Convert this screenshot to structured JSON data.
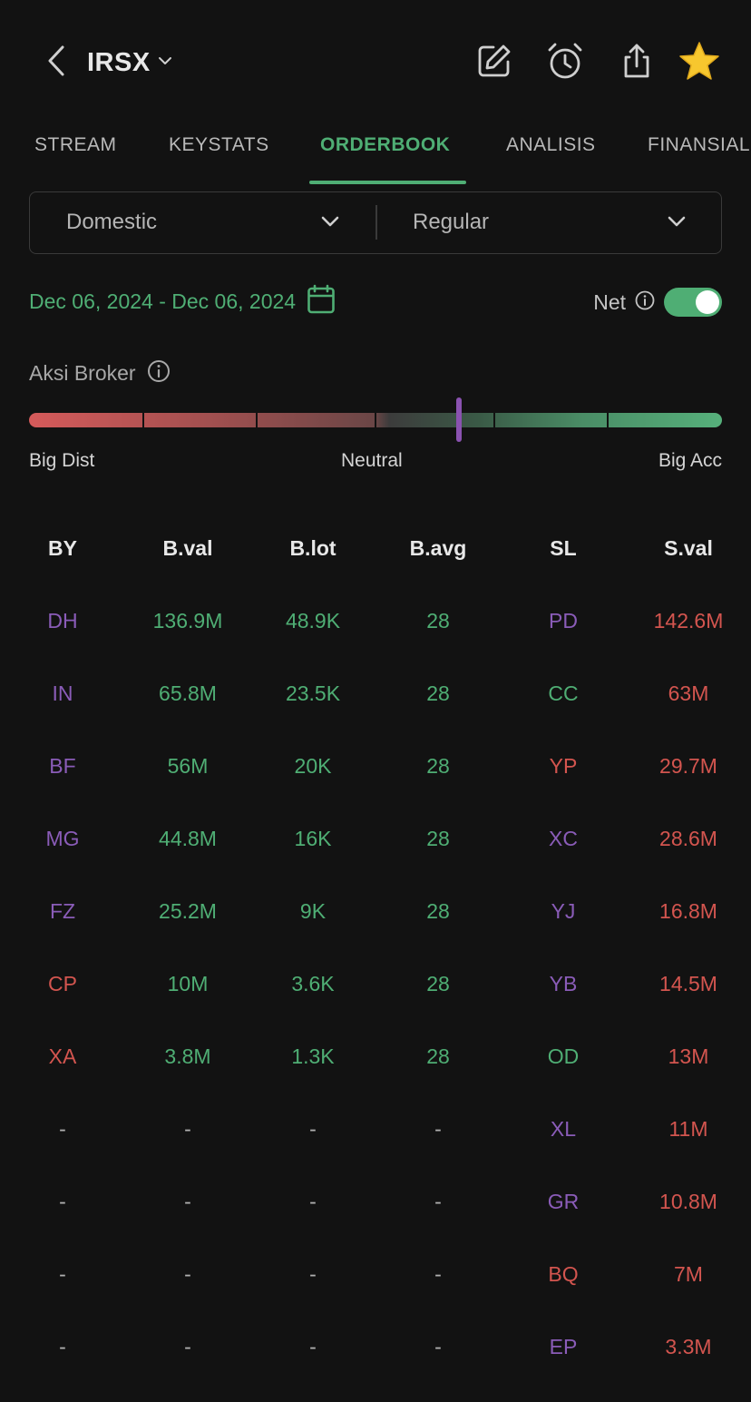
{
  "header": {
    "ticker": "IRSX",
    "icons": {
      "back": "chevron-left-icon",
      "ticker_dropdown": "chevron-down-icon",
      "edit": "edit-icon",
      "alarm": "alarm-icon",
      "share": "share-icon",
      "favorite": "star-icon"
    }
  },
  "tabs": [
    {
      "label": "STREAM",
      "active": false
    },
    {
      "label": "KEYSTATS",
      "active": false
    },
    {
      "label": "ORDERBOOK",
      "active": true
    },
    {
      "label": "ANALISIS",
      "active": false
    },
    {
      "label": "FINANSIAL",
      "active": false
    }
  ],
  "filters": {
    "market": "Domestic",
    "board": "Regular"
  },
  "date_range": "Dec 06, 2024 - Dec 06, 2024",
  "net": {
    "label": "Net",
    "enabled": true
  },
  "aksi_broker": {
    "label": "Aksi Broker",
    "level": 0.62,
    "scale": {
      "left": "Big Dist",
      "middle": "Neutral",
      "right": "Big Acc"
    }
  },
  "table": {
    "headers": [
      "BY",
      "B.val",
      "B.lot",
      "B.avg",
      "SL",
      "S.val"
    ],
    "rows": [
      [
        "DH",
        "136.9M",
        "48.9K",
        "28",
        "PD",
        "142.6M"
      ],
      [
        "IN",
        "65.8M",
        "23.5K",
        "28",
        "CC",
        "63M"
      ],
      [
        "BF",
        "56M",
        "20K",
        "28",
        "YP",
        "29.7M"
      ],
      [
        "MG",
        "44.8M",
        "16K",
        "28",
        "XC",
        "28.6M"
      ],
      [
        "FZ",
        "25.2M",
        "9K",
        "28",
        "YJ",
        "16.8M"
      ],
      [
        "CP",
        "10M",
        "3.6K",
        "28",
        "YB",
        "14.5M"
      ],
      [
        "XA",
        "3.8M",
        "1.3K",
        "28",
        "OD",
        "13M"
      ],
      [
        "-",
        "-",
        "-",
        "-",
        "XL",
        "11M"
      ],
      [
        "-",
        "-",
        "-",
        "-",
        "GR",
        "10.8M"
      ],
      [
        "-",
        "-",
        "-",
        "-",
        "BQ",
        "7M"
      ],
      [
        "-",
        "-",
        "-",
        "-",
        "EP",
        "3.3M"
      ]
    ],
    "buyer_colors": [
      "purple",
      "purple",
      "purple",
      "purple",
      "purple",
      "red",
      "red",
      "dash",
      "dash",
      "dash",
      "dash"
    ],
    "seller_colors": [
      "purple",
      "green",
      "red",
      "purple",
      "purple",
      "purple",
      "green",
      "purple",
      "purple",
      "red",
      "purple"
    ]
  },
  "colors": {
    "background": "#121212",
    "accent_green": "#4fae74",
    "sell_red": "#d3554f",
    "broker_purple": "#8a5cb8",
    "star": "#f7c72e"
  }
}
